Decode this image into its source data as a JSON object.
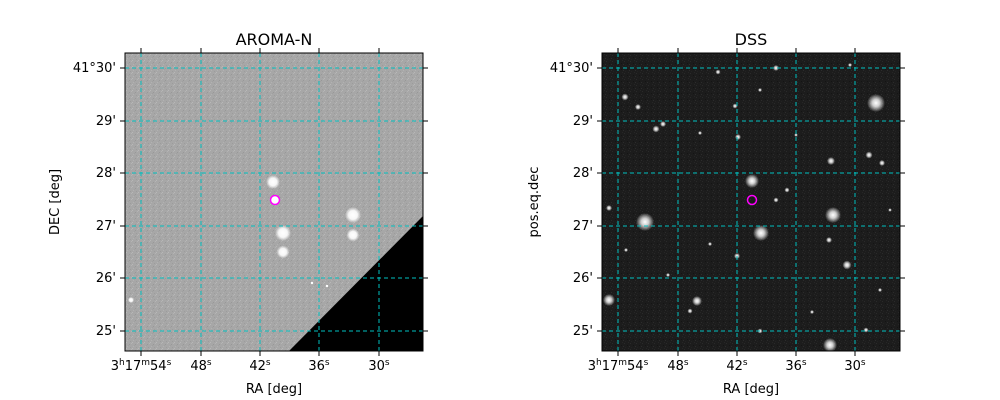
{
  "panels": [
    {
      "title": "AROMA-N",
      "xlabel": "RA [deg]",
      "ylabel": "DEC [deg]",
      "y_ticks": [
        {
          "label": "41°30'"
        },
        {
          "label": "29'"
        },
        {
          "label": "28'"
        },
        {
          "label": "27'"
        },
        {
          "label": "26'"
        },
        {
          "label": "25'"
        }
      ],
      "x_ticks": [
        {
          "label_base": "3",
          "label_h": "h",
          "label_m_val": "17",
          "label_m": "m",
          "label_s_val": "54",
          "label_s": "s"
        },
        {
          "label_s_val": "48",
          "label_s": "s"
        },
        {
          "label_s_val": "42",
          "label_s": "s"
        },
        {
          "label_s_val": "36",
          "label_s": "s"
        },
        {
          "label_s_val": "30",
          "label_s": "s"
        }
      ],
      "image_style": "grey survey image with black masked corner",
      "marker_color": "#ff00ff",
      "grid_color": "#00bfbf"
    },
    {
      "title": "DSS",
      "xlabel": "RA [deg]",
      "ylabel": "pos.eq.dec",
      "y_ticks": [
        {
          "label": "41°30'"
        },
        {
          "label": "29'"
        },
        {
          "label": "28'"
        },
        {
          "label": "27'"
        },
        {
          "label": "26'"
        },
        {
          "label": "25'"
        }
      ],
      "x_ticks": [
        {
          "label_base": "3",
          "label_h": "h",
          "label_m_val": "17",
          "label_m": "m",
          "label_s_val": "54",
          "label_s": "s"
        },
        {
          "label_s_val": "48",
          "label_s": "s"
        },
        {
          "label_s_val": "42",
          "label_s": "s"
        },
        {
          "label_s_val": "36",
          "label_s": "s"
        },
        {
          "label_s_val": "30",
          "label_s": "s"
        }
      ],
      "image_style": "dark optical sky survey star field",
      "marker_color": "#ff00ff",
      "grid_color": "#00bfbf"
    }
  ]
}
